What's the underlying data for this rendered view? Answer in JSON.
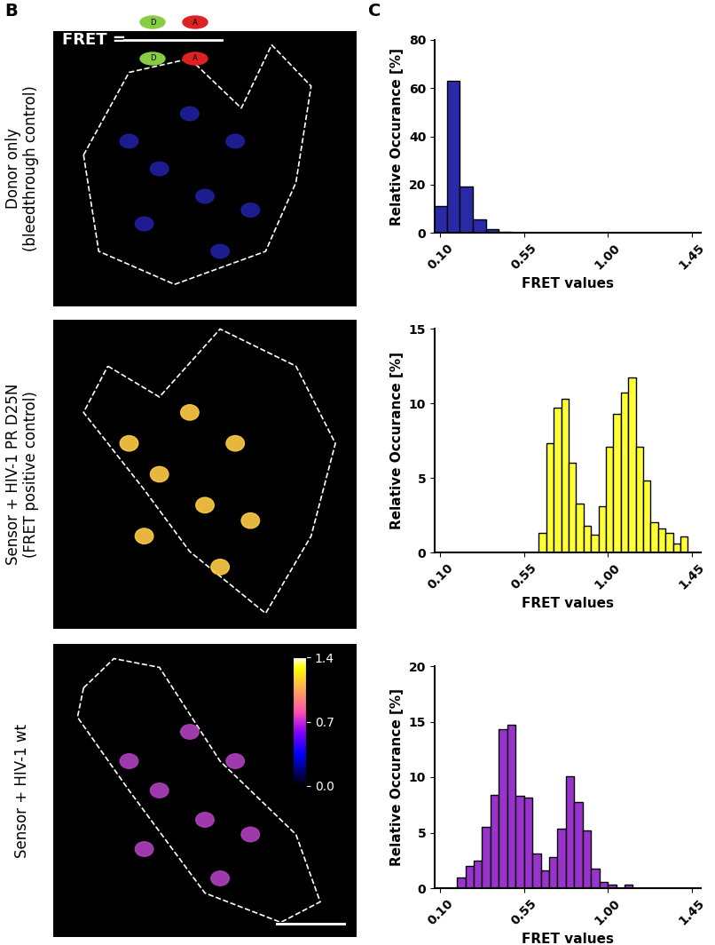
{
  "panel_labels": [
    "B",
    "C"
  ],
  "formula": {
    "text": "FRET =",
    "donor": "D",
    "acceptor": "A"
  },
  "row_labels": [
    "Donor only\n(bleedthrough control)",
    "Sensor + HIV-1 PR D25N\n(FRET positive control)",
    "Sensor + HIV-1 wt"
  ],
  "colorbar": {
    "range": [
      0,
      1.4
    ],
    "ticks": [
      {
        "value": 0,
        "label": "0.0"
      },
      {
        "value": 0.7,
        "label": "0.7"
      },
      {
        "value": 1.4,
        "label": "1.4"
      }
    ]
  },
  "chart_data": [
    {
      "type": "histogram",
      "color": "#2a2aa8",
      "xlabel": "FRET values",
      "ylabel": "Relative Occurance [%]",
      "bins": [
        0.065,
        0.135,
        0.205,
        0.275,
        0.345,
        0.415,
        0.485
      ],
      "values": [
        11,
        63,
        19,
        5.5,
        1.5,
        0.5
      ],
      "xlim": [
        0.07,
        1.5
      ],
      "xticks": [
        {
          "value": 0.1,
          "label": "0.10"
        },
        {
          "value": 0.55,
          "label": "0.55"
        },
        {
          "value": 1.0,
          "label": "1.00"
        },
        {
          "value": 1.45,
          "label": "1.45"
        }
      ],
      "ylim": [
        0,
        80
      ],
      "yticks": [
        0,
        20,
        40,
        60,
        80
      ]
    },
    {
      "type": "histogram",
      "color": "#ffff33",
      "xlabel": "FRET values",
      "ylabel": "Relative Occurance [%]",
      "bins": [
        0.63,
        0.67,
        0.71,
        0.75,
        0.79,
        0.83,
        0.87,
        0.91,
        0.95,
        0.99,
        1.03,
        1.07,
        1.11,
        1.15,
        1.19,
        1.23,
        1.27,
        1.31,
        1.35,
        1.39,
        1.43
      ],
      "values": [
        1.3,
        7.3,
        9.7,
        10.3,
        6.0,
        3.3,
        1.8,
        1.2,
        3.1,
        7.1,
        9.3,
        10.7,
        11.7,
        7.1,
        4.8,
        2.0,
        1.6,
        1.3,
        0.6,
        1.1
      ],
      "xlim": [
        0.07,
        1.5
      ],
      "xticks": [
        {
          "value": 0.1,
          "label": "0.10"
        },
        {
          "value": 0.55,
          "label": "0.55"
        },
        {
          "value": 1.0,
          "label": "1.00"
        },
        {
          "value": 1.45,
          "label": "1.45"
        }
      ],
      "ylim": [
        0,
        15
      ],
      "yticks": [
        0,
        5,
        10,
        15
      ]
    },
    {
      "type": "histogram",
      "color": "#9933cc",
      "xlabel": "FRET values",
      "ylabel": "Relative Occurance [%]",
      "bins": [
        0.19,
        0.235,
        0.28,
        0.325,
        0.37,
        0.415,
        0.46,
        0.505,
        0.55,
        0.595,
        0.64,
        0.685,
        0.73,
        0.775,
        0.82,
        0.865,
        0.91,
        0.955,
        1.0,
        1.045,
        1.09,
        1.135
      ],
      "values": [
        1.0,
        2.0,
        2.5,
        5.5,
        8.4,
        14.3,
        14.7,
        8.3,
        8.2,
        3.1,
        1.6,
        2.8,
        5.4,
        10.1,
        7.8,
        5.2,
        1.8,
        0.6,
        0.3,
        0,
        0.3
      ],
      "xlim": [
        0.07,
        1.5
      ],
      "xticks": [
        {
          "value": 0.1,
          "label": "0.10"
        },
        {
          "value": 0.55,
          "label": "0.55"
        },
        {
          "value": 1.0,
          "label": "1.00"
        },
        {
          "value": 1.45,
          "label": "1.45"
        }
      ],
      "ylim": [
        0,
        20
      ],
      "yticks": [
        0,
        5,
        10,
        15,
        20
      ]
    }
  ]
}
